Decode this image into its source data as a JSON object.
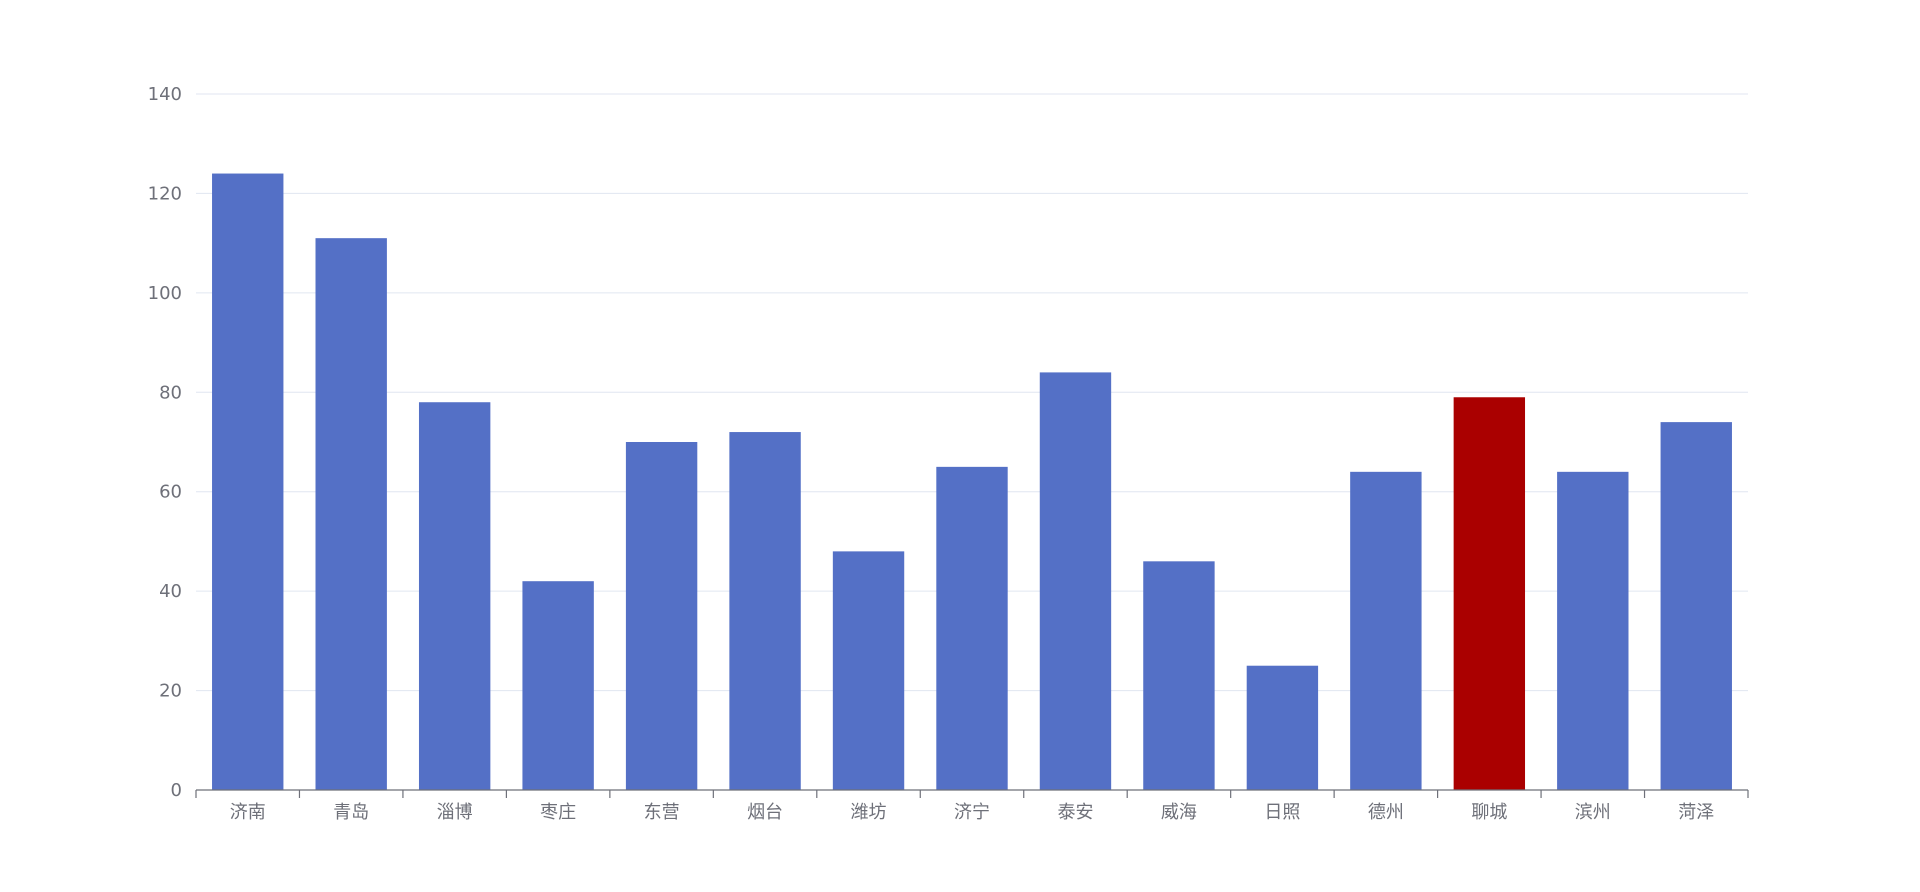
{
  "chart_data": {
    "type": "bar",
    "title": "",
    "xlabel": "",
    "ylabel": "",
    "categories": [
      "济南",
      "青岛",
      "淄博",
      "枣庄",
      "东营",
      "烟台",
      "潍坊",
      "济宁",
      "泰安",
      "威海",
      "日照",
      "德州",
      "聊城",
      "滨州",
      "菏泽"
    ],
    "values": [
      124,
      111,
      78,
      42,
      70,
      72,
      48,
      65,
      84,
      46,
      25,
      64,
      79,
      64,
      74
    ],
    "ylim": [
      0,
      140
    ],
    "yticks": [
      0,
      20,
      40,
      60,
      80,
      100,
      120,
      140
    ],
    "grid": true,
    "legend": false,
    "bar_color": "#5470c6",
    "highlight_color": "#aa0000",
    "highlight_category": "聊城"
  }
}
